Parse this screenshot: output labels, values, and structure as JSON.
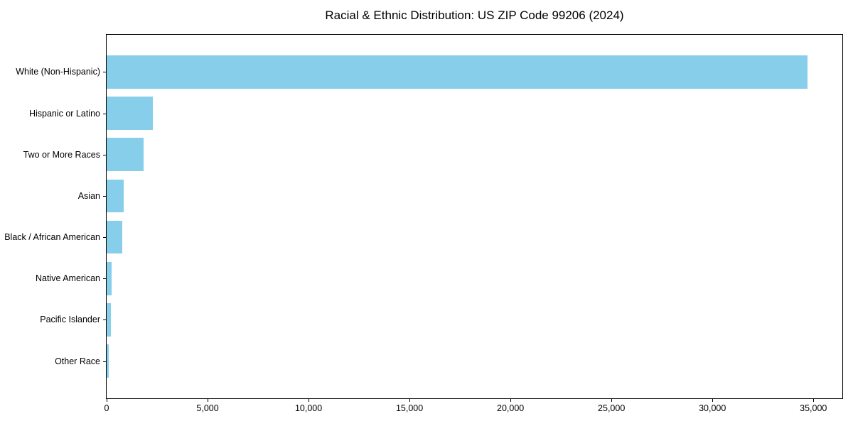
{
  "chart_data": {
    "type": "bar",
    "orientation": "horizontal",
    "title": "Racial & Ethnic Distribution: US ZIP Code 99206 (2024)",
    "categories": [
      "White (Non-Hispanic)",
      "Hispanic or Latino",
      "Two or More Races",
      "Asian",
      "Black / African American",
      "Native American",
      "Pacific Islander",
      "Other Race"
    ],
    "values": [
      34700,
      2290,
      1830,
      850,
      780,
      255,
      220,
      115
    ],
    "xlabel": "",
    "ylabel": "",
    "xlim": [
      0,
      36435
    ],
    "x_tick_values": [
      0,
      5000,
      10000,
      15000,
      20000,
      25000,
      30000,
      35000
    ],
    "x_tick_labels": [
      "0",
      "5,000",
      "10,000",
      "15,000",
      "20,000",
      "25,000",
      "30,000",
      "35,000"
    ],
    "bar_color": "#87CEEB",
    "grid": false,
    "legend_position": "none"
  }
}
